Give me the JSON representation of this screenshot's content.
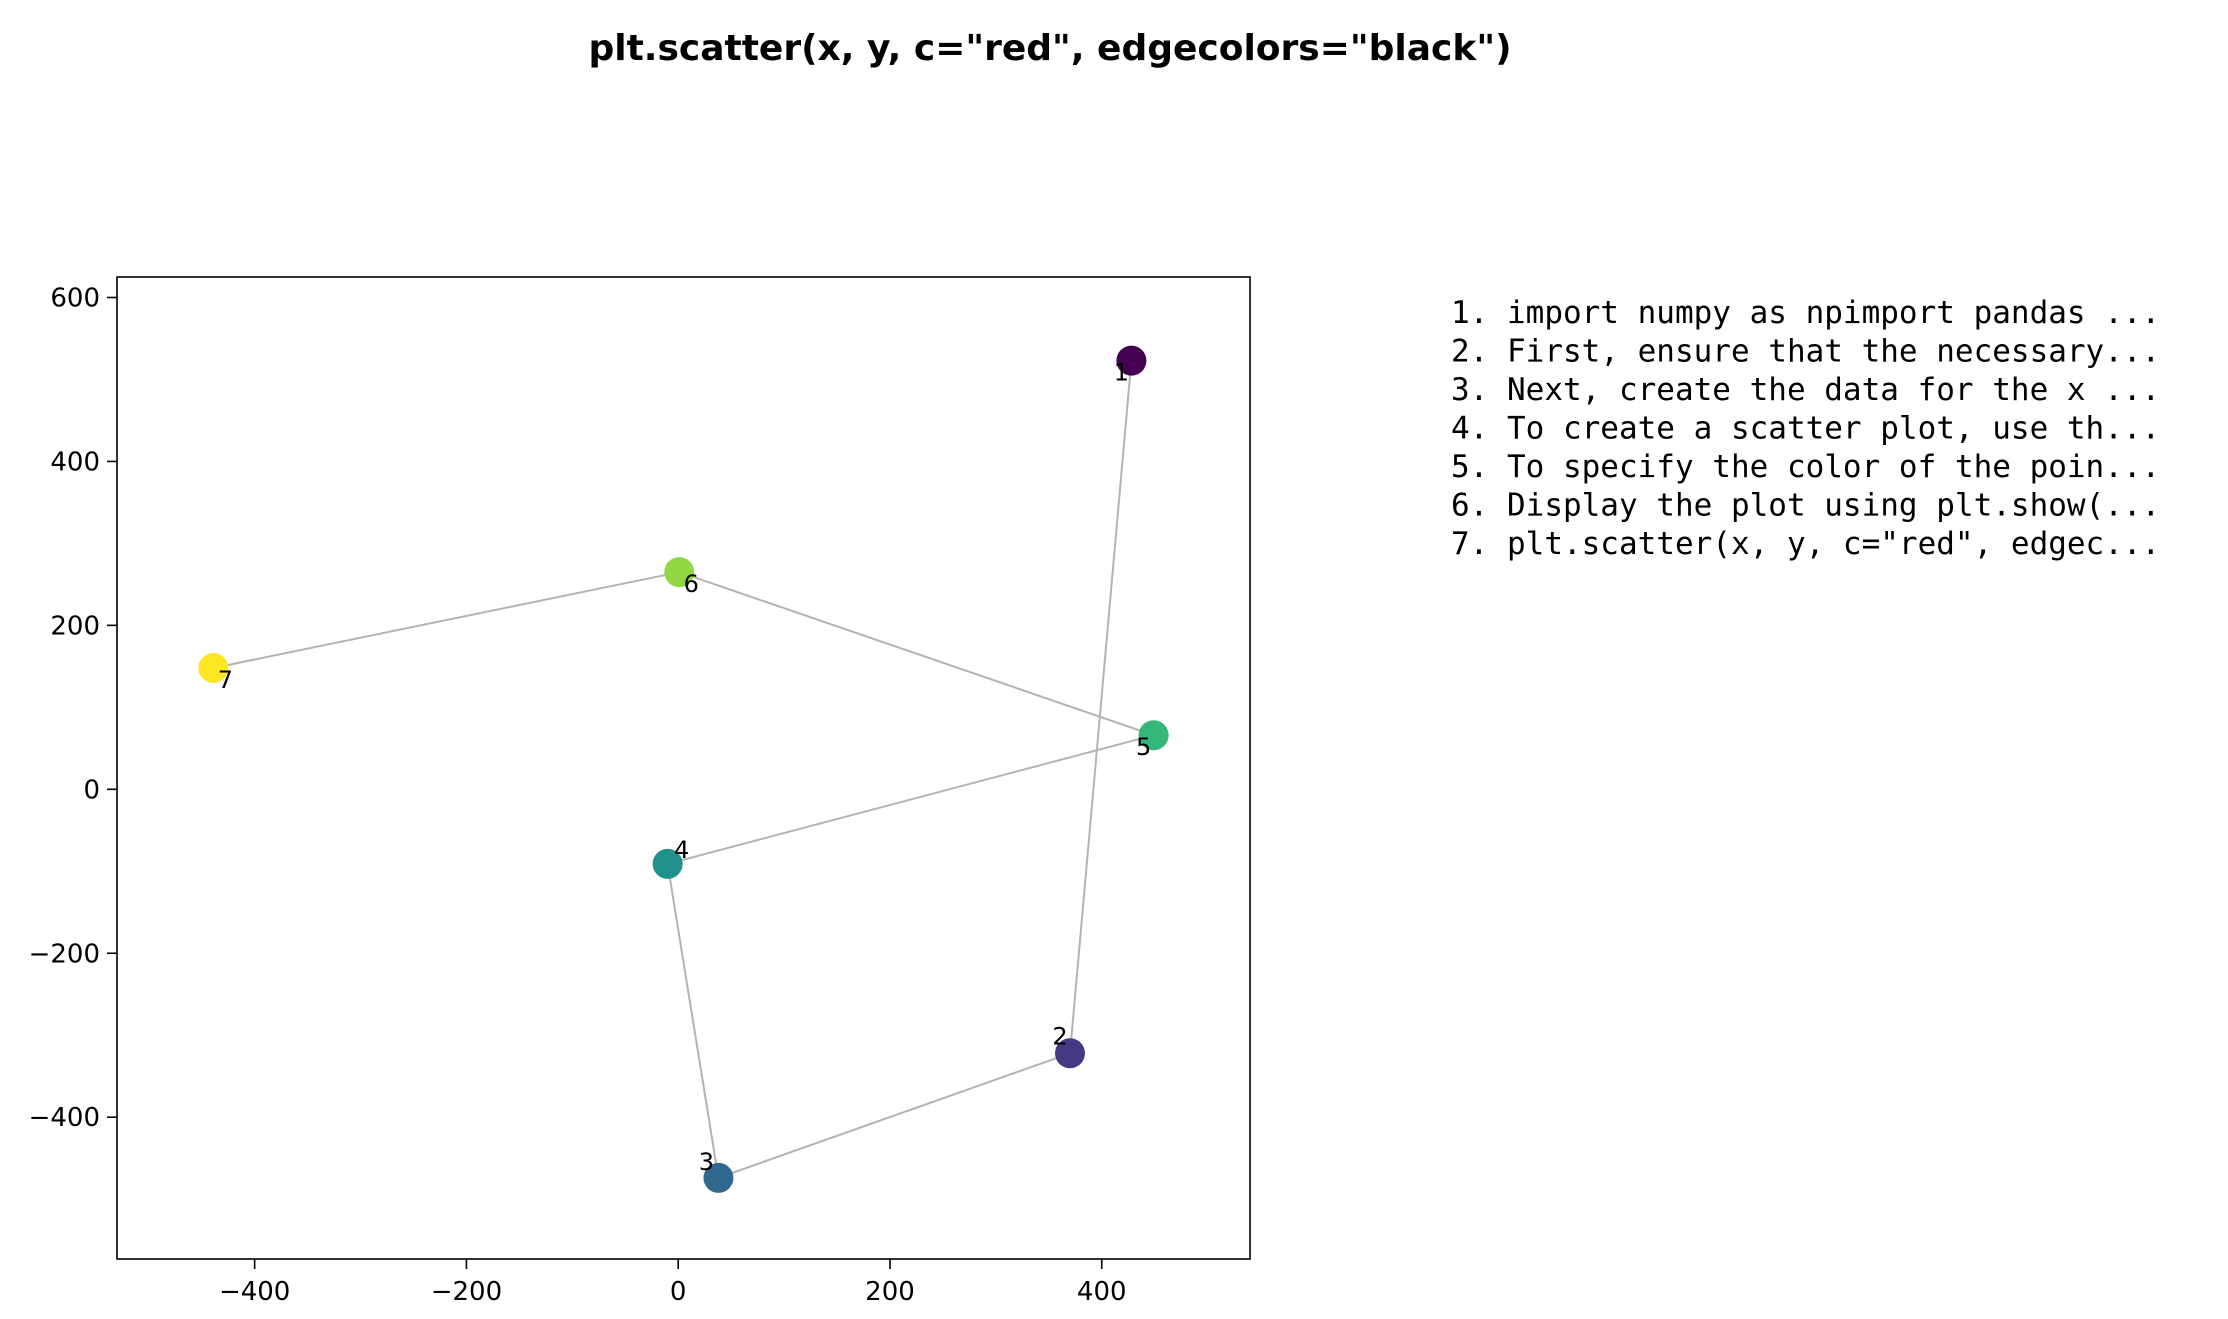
{
  "chart_data": {
    "type": "scatter",
    "title": "plt.scatter(x, y, c=\"red\", edgecolors=\"black\")",
    "xlabel": "",
    "ylabel": "",
    "xlim": [
      -530,
      540
    ],
    "ylim": [
      -573,
      625
    ],
    "x_ticks": [
      -400,
      -200,
      0,
      200,
      400
    ],
    "y_ticks": [
      -400,
      -200,
      0,
      200,
      400,
      600
    ],
    "grid": false,
    "connect_points": true,
    "line_color": "#b3b3b3",
    "points": [
      {
        "label": "1",
        "x": 428,
        "y": 523,
        "color": "#440154"
      },
      {
        "label": "2",
        "x": 370,
        "y": -322,
        "color": "#443983"
      },
      {
        "label": "3",
        "x": 38,
        "y": -474,
        "color": "#31688e"
      },
      {
        "label": "4",
        "x": -10,
        "y": -91,
        "color": "#21918c"
      },
      {
        "label": "5",
        "x": 449,
        "y": 66,
        "color": "#35b779"
      },
      {
        "label": "6",
        "x": 1,
        "y": 265,
        "color": "#90d743"
      },
      {
        "label": "7",
        "x": -439,
        "y": 148,
        "color": "#fde725"
      }
    ]
  },
  "steps": [
    "1. import numpy as npimport pandas ...",
    "2. First, ensure that the necessary...",
    "3. Next, create the data for the x ...",
    "4. To create a scatter plot, use th...",
    "5. To specify the color of the poin...",
    "6. Display the plot using plt.show(...",
    "7. plt.scatter(x, y, c=\"red\", edgec..."
  ]
}
